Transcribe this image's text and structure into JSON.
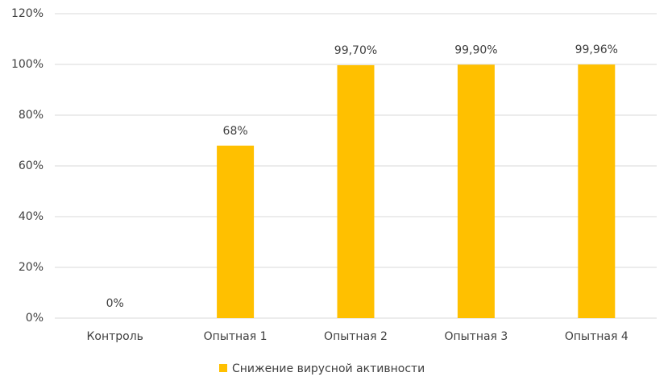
{
  "chart_data": {
    "type": "bar",
    "categories": [
      "Контроль",
      "Опытная 1",
      "Опытная 2",
      "Опытная 3",
      "Опытная 4"
    ],
    "series": [
      {
        "name": "Снижение вирусной активности",
        "color": "#ffc000",
        "values": [
          0,
          68,
          99.7,
          99.9,
          99.96
        ],
        "value_labels": [
          "0%",
          "68%",
          "99,70%",
          "99,90%",
          "99,96%"
        ]
      }
    ],
    "ylim": [
      0,
      120
    ],
    "yticks": [
      {
        "value": 0,
        "label": "0%"
      },
      {
        "value": 20,
        "label": "20%"
      },
      {
        "value": 40,
        "label": "40%"
      },
      {
        "value": 60,
        "label": "60%"
      },
      {
        "value": 80,
        "label": "80%"
      },
      {
        "value": 100,
        "label": "100%"
      },
      {
        "value": 120,
        "label": "120%"
      }
    ],
    "grid": true,
    "legend": "bottom"
  }
}
